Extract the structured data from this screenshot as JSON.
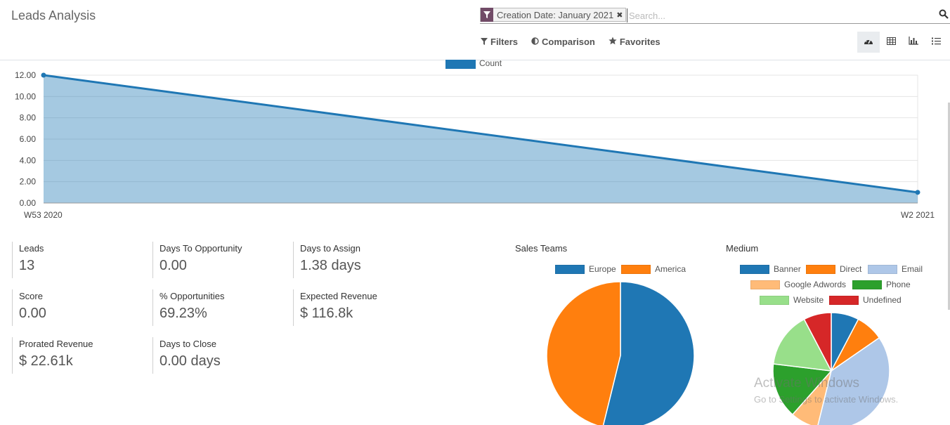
{
  "header": {
    "title": "Leads Analysis",
    "facet_label": "Creation Date: January 2021",
    "search_placeholder": "Search...",
    "menus": [
      {
        "label": "Filters",
        "icon": "filter-icon"
      },
      {
        "label": "Comparison",
        "icon": "half-circle-icon"
      },
      {
        "label": "Favorites",
        "icon": "star-icon"
      }
    ],
    "views": [
      {
        "name": "dashboard-view",
        "icon": "dashboard-icon",
        "active": true
      },
      {
        "name": "pivot-view",
        "icon": "grid-icon",
        "active": false
      },
      {
        "name": "graph-view",
        "icon": "bar-chart-icon",
        "active": false
      },
      {
        "name": "list-view",
        "icon": "list-icon",
        "active": false
      }
    ],
    "colors": {
      "brand": "#714b67"
    }
  },
  "kpis": [
    {
      "label": "Leads",
      "value": "13"
    },
    {
      "label": "Days To Opportunity",
      "value": "0.00"
    },
    {
      "label": "Days to Assign",
      "value": "1.38 days"
    },
    {
      "label": "Score",
      "value": "0.00"
    },
    {
      "label": "% Opportunities",
      "value": "69.23%"
    },
    {
      "label": "Expected Revenue",
      "value": "$ 116.8k"
    },
    {
      "label": "Prorated Revenue",
      "value": "$ 22.61k"
    },
    {
      "label": "Days to Close",
      "value": "0.00 days"
    }
  ],
  "chart_data": [
    {
      "type": "area",
      "categories": [
        "W53 2020",
        "W2 2021"
      ],
      "series": [
        {
          "name": "Count",
          "values": [
            12,
            1
          ],
          "color": "#1f77b4"
        }
      ],
      "ylim": [
        0,
        12
      ],
      "yticks": [
        "0.00",
        "2.00",
        "4.00",
        "6.00",
        "8.00",
        "10.00",
        "12.00"
      ],
      "grid": true,
      "legend": "top-center"
    },
    {
      "type": "pie",
      "title": "Sales Teams",
      "categories": [
        "Europe",
        "America"
      ],
      "values": [
        7,
        6
      ],
      "colors": [
        "#1f77b4",
        "#ff7f0e"
      ],
      "legend": "top"
    },
    {
      "type": "pie",
      "title": "Medium",
      "categories": [
        "Banner",
        "Direct",
        "Email",
        "Google Adwords",
        "Phone",
        "Website",
        "Undefined"
      ],
      "values": [
        1,
        1,
        5,
        1,
        2,
        2,
        1
      ],
      "colors": [
        "#1f77b4",
        "#ff7f0e",
        "#aec7e8",
        "#ffbb78",
        "#2ca02c",
        "#98df8a",
        "#d62728"
      ],
      "legend": "top"
    }
  ],
  "watermark": {
    "title": "Activate Windows",
    "subtitle": "Go to Settings to activate Windows."
  }
}
